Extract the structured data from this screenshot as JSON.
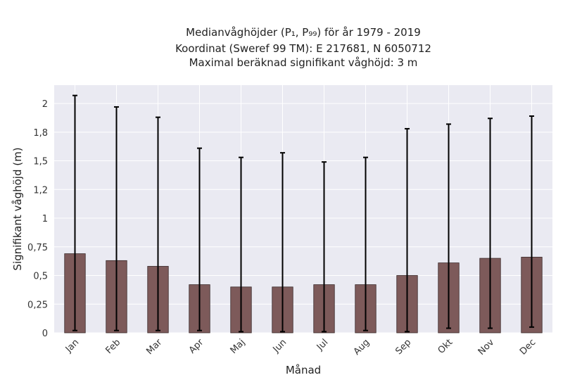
{
  "chart_data": {
    "type": "bar",
    "title_lines": [
      "Medianvåghöjder (P₁, P₉₉) för år 1979 - 2019",
      "Koordinat (Sweref 99 TM): E 217681, N 6050712",
      "Maximal beräknad signifikant våghöjd: 3 m"
    ],
    "xlabel": "Månad",
    "ylabel": "Signifikant våghöjd (m)",
    "categories": [
      "Jan",
      "Feb",
      "Mar",
      "Apr",
      "Maj",
      "Jun",
      "Jul",
      "Aug",
      "Sep",
      "Okt",
      "Nov",
      "Dec"
    ],
    "series": [
      {
        "values": [
          0.69,
          0.63,
          0.58,
          0.42,
          0.4,
          0.4,
          0.42,
          0.42,
          0.5,
          0.61,
          0.65,
          0.66
        ],
        "p1": [
          0.02,
          0.02,
          0.02,
          0.02,
          0.01,
          0.01,
          0.01,
          0.02,
          0.01,
          0.04,
          0.04,
          0.05
        ],
        "p99": [
          2.07,
          1.97,
          1.88,
          1.61,
          1.53,
          1.57,
          1.49,
          1.53,
          1.78,
          1.82,
          1.87,
          1.89
        ]
      }
    ],
    "yticks": [
      0,
      0.25,
      0.5,
      0.75,
      1,
      1.25,
      1.5,
      1.75,
      2
    ],
    "ytick_labels": [
      "0",
      "0,25",
      "0,5",
      "0,75",
      "1",
      "1,2",
      "1,5",
      "1,8",
      "2"
    ],
    "ylim": [
      0,
      2.16
    ],
    "grid": true,
    "colors": {
      "bar_fill": "#7d5a5a",
      "bar_edge": "#3a2a2a",
      "errorbar": "#000000",
      "plot_bg": "#eaeaf2",
      "grid": "#ffffff"
    }
  }
}
